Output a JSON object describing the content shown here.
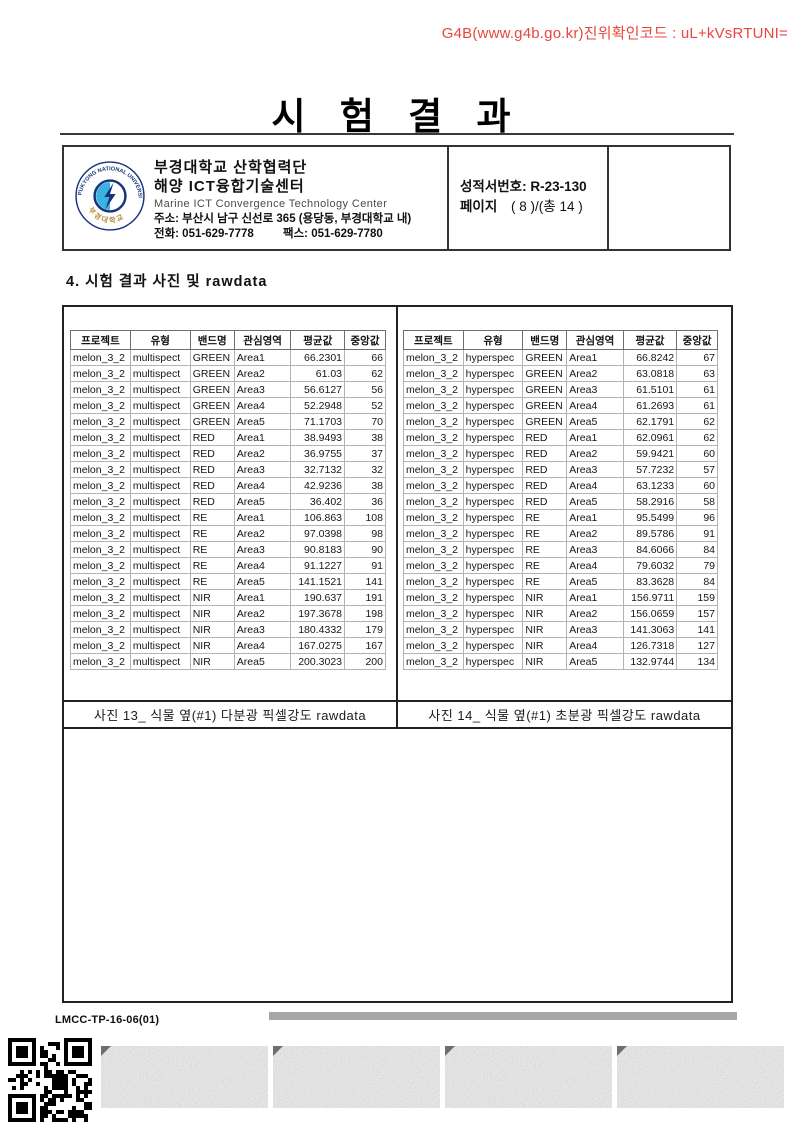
{
  "colors": {
    "accent_red": "#e8463f",
    "bar_gray": "#a6a6a6",
    "logo_blue": "#16347c",
    "logo_lightblue": "#3ab3e3",
    "logo_gold": "#b8913d"
  },
  "verification_code": "G4B(www.g4b.go.kr)진위확인코드 : uL+kVsRTUNI=",
  "title": "시 험 결 과",
  "org": {
    "name_line1": "부경대학교 산학협력단",
    "name_line2": "해양 ICT융합기술센터",
    "name_en": "Marine ICT Convergence Technology Center",
    "address": "주소: 부산시 남구 신선로 365 (용당동, 부경대학교 내)",
    "phone": "전화: 051-629-7778",
    "fax": "팩스:  051-629-7780",
    "logo_text_top": "PUKYONG NATIONAL UNIVERSITY",
    "logo_text_bottom": "부 경 대 학 교"
  },
  "report": {
    "number_label": "성적서번호:",
    "number": "R-23-130",
    "page_label": "페이지",
    "page_value": "( 8 )/(총  14 )"
  },
  "section_title": "4. 시험 결과 사진 및 rawdata",
  "tables": {
    "columns": [
      "프로젝트",
      "유형",
      "밴드명",
      "관심영역",
      "평균값",
      "중앙값"
    ],
    "left": {
      "caption": "사진 13_ 식물 옆(#1) 다분광 픽셀강도 rawdata",
      "rows": [
        [
          "melon_3_2",
          "multispect",
          "GREEN",
          "Area1",
          "66.2301",
          "66"
        ],
        [
          "melon_3_2",
          "multispect",
          "GREEN",
          "Area2",
          "61.03",
          "62"
        ],
        [
          "melon_3_2",
          "multispect",
          "GREEN",
          "Area3",
          "56.6127",
          "56"
        ],
        [
          "melon_3_2",
          "multispect",
          "GREEN",
          "Area4",
          "52.2948",
          "52"
        ],
        [
          "melon_3_2",
          "multispect",
          "GREEN",
          "Area5",
          "71.1703",
          "70"
        ],
        [
          "melon_3_2",
          "multispect",
          "RED",
          "Area1",
          "38.9493",
          "38"
        ],
        [
          "melon_3_2",
          "multispect",
          "RED",
          "Area2",
          "36.9755",
          "37"
        ],
        [
          "melon_3_2",
          "multispect",
          "RED",
          "Area3",
          "32.7132",
          "32"
        ],
        [
          "melon_3_2",
          "multispect",
          "RED",
          "Area4",
          "42.9236",
          "38"
        ],
        [
          "melon_3_2",
          "multispect",
          "RED",
          "Area5",
          "36.402",
          "36"
        ],
        [
          "melon_3_2",
          "multispect",
          "RE",
          "Area1",
          "106.863",
          "108"
        ],
        [
          "melon_3_2",
          "multispect",
          "RE",
          "Area2",
          "97.0398",
          "98"
        ],
        [
          "melon_3_2",
          "multispect",
          "RE",
          "Area3",
          "90.8183",
          "90"
        ],
        [
          "melon_3_2",
          "multispect",
          "RE",
          "Area4",
          "91.1227",
          "91"
        ],
        [
          "melon_3_2",
          "multispect",
          "RE",
          "Area5",
          "141.1521",
          "141"
        ],
        [
          "melon_3_2",
          "multispect",
          "NIR",
          "Area1",
          "190.637",
          "191"
        ],
        [
          "melon_3_2",
          "multispect",
          "NIR",
          "Area2",
          "197.3678",
          "198"
        ],
        [
          "melon_3_2",
          "multispect",
          "NIR",
          "Area3",
          "180.4332",
          "179"
        ],
        [
          "melon_3_2",
          "multispect",
          "NIR",
          "Area4",
          "167.0275",
          "167"
        ],
        [
          "melon_3_2",
          "multispect",
          "NIR",
          "Area5",
          "200.3023",
          "200"
        ]
      ]
    },
    "right": {
      "caption": "사진 14_ 식물 옆(#1) 초분광 픽셀강도 rawdata",
      "rows": [
        [
          "melon_3_2",
          "hyperspec",
          "GREEN",
          "Area1",
          "66.8242",
          "67"
        ],
        [
          "melon_3_2",
          "hyperspec",
          "GREEN",
          "Area2",
          "63.0818",
          "63"
        ],
        [
          "melon_3_2",
          "hyperspec",
          "GREEN",
          "Area3",
          "61.5101",
          "61"
        ],
        [
          "melon_3_2",
          "hyperspec",
          "GREEN",
          "Area4",
          "61.2693",
          "61"
        ],
        [
          "melon_3_2",
          "hyperspec",
          "GREEN",
          "Area5",
          "62.1791",
          "62"
        ],
        [
          "melon_3_2",
          "hyperspec",
          "RED",
          "Area1",
          "62.0961",
          "62"
        ],
        [
          "melon_3_2",
          "hyperspec",
          "RED",
          "Area2",
          "59.9421",
          "60"
        ],
        [
          "melon_3_2",
          "hyperspec",
          "RED",
          "Area3",
          "57.7232",
          "57"
        ],
        [
          "melon_3_2",
          "hyperspec",
          "RED",
          "Area4",
          "63.1233",
          "60"
        ],
        [
          "melon_3_2",
          "hyperspec",
          "RED",
          "Area5",
          "58.2916",
          "58"
        ],
        [
          "melon_3_2",
          "hyperspec",
          "RE",
          "Area1",
          "95.5499",
          "96"
        ],
        [
          "melon_3_2",
          "hyperspec",
          "RE",
          "Area2",
          "89.5786",
          "91"
        ],
        [
          "melon_3_2",
          "hyperspec",
          "RE",
          "Area3",
          "84.6066",
          "84"
        ],
        [
          "melon_3_2",
          "hyperspec",
          "RE",
          "Area4",
          "79.6032",
          "79"
        ],
        [
          "melon_3_2",
          "hyperspec",
          "RE",
          "Area5",
          "83.3628",
          "84"
        ],
        [
          "melon_3_2",
          "hyperspec",
          "NIR",
          "Area1",
          "156.9711",
          "159"
        ],
        [
          "melon_3_2",
          "hyperspec",
          "NIR",
          "Area2",
          "156.0659",
          "157"
        ],
        [
          "melon_3_2",
          "hyperspec",
          "NIR",
          "Area3",
          "141.3063",
          "141"
        ],
        [
          "melon_3_2",
          "hyperspec",
          "NIR",
          "Area4",
          "126.7318",
          "127"
        ],
        [
          "melon_3_2",
          "hyperspec",
          "NIR",
          "Area5",
          "132.9744",
          "134"
        ]
      ]
    }
  },
  "footer": {
    "doc_code": "LMCC-TP-16-06(01)"
  }
}
